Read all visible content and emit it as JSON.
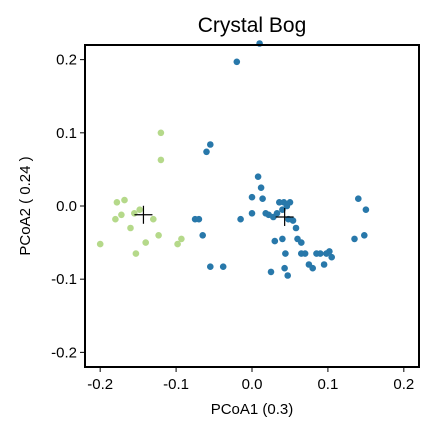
{
  "chart_data": {
    "type": "scatter",
    "title": "Crystal Bog",
    "xlabel": "PCoA1 (0.3)",
    "ylabel": "PCoA2 ( 0.24 )",
    "xlim": [
      -0.22,
      0.22
    ],
    "ylim": [
      -0.22,
      0.22
    ],
    "xticks": [
      -0.2,
      -0.1,
      0.0,
      0.1,
      0.2
    ],
    "yticks": [
      -0.2,
      -0.1,
      0.0,
      0.1,
      0.2
    ],
    "xtick_labels": [
      "-0.2",
      "-0.1",
      "0.0",
      "0.1",
      "0.2"
    ],
    "ytick_labels": [
      "-0.2",
      "-0.1",
      "0.0",
      "0.1",
      "0.2"
    ],
    "grid": false,
    "legend": "none",
    "series": [
      {
        "color": "#b5d98a",
        "points": [
          [
            -0.2,
            -0.052
          ],
          [
            -0.18,
            -0.018
          ],
          [
            -0.178,
            0.005
          ],
          [
            -0.172,
            -0.012
          ],
          [
            -0.168,
            0.008
          ],
          [
            -0.16,
            -0.03
          ],
          [
            -0.155,
            -0.01
          ],
          [
            -0.153,
            -0.065
          ],
          [
            -0.148,
            -0.005
          ],
          [
            -0.14,
            -0.05
          ],
          [
            -0.13,
            -0.018
          ],
          [
            -0.123,
            -0.04
          ],
          [
            -0.12,
            0.063
          ],
          [
            -0.12,
            0.1
          ],
          [
            -0.098,
            -0.052
          ],
          [
            -0.093,
            -0.045
          ]
        ],
        "centroid": [
          -0.143,
          -0.012
        ]
      },
      {
        "color": "#2878aa",
        "points": [
          [
            0.01,
            0.222
          ],
          [
            -0.02,
            0.197
          ],
          [
            -0.055,
            0.084
          ],
          [
            -0.06,
            0.074
          ],
          [
            -0.075,
            -0.018
          ],
          [
            -0.07,
            -0.018
          ],
          [
            -0.065,
            -0.04
          ],
          [
            -0.055,
            -0.083
          ],
          [
            -0.038,
            -0.083
          ],
          [
            -0.015,
            -0.018
          ],
          [
            0.0,
            0.012
          ],
          [
            0.0,
            -0.01
          ],
          [
            0.008,
            0.04
          ],
          [
            0.012,
            0.025
          ],
          [
            0.014,
            0.01
          ],
          [
            0.018,
            -0.01
          ],
          [
            0.022,
            -0.012
          ],
          [
            0.028,
            -0.015
          ],
          [
            0.025,
            -0.09
          ],
          [
            0.03,
            -0.048
          ],
          [
            0.033,
            -0.01
          ],
          [
            0.036,
            0.005
          ],
          [
            0.04,
            -0.005
          ],
          [
            0.042,
            0.005
          ],
          [
            0.046,
            0.0
          ],
          [
            0.048,
            -0.018
          ],
          [
            0.04,
            -0.045
          ],
          [
            0.044,
            -0.065
          ],
          [
            0.043,
            -0.085
          ],
          [
            0.047,
            -0.095
          ],
          [
            0.05,
            0.005
          ],
          [
            0.054,
            -0.02
          ],
          [
            0.058,
            -0.03
          ],
          [
            0.06,
            -0.045
          ],
          [
            0.065,
            -0.05
          ],
          [
            0.065,
            -0.065
          ],
          [
            0.07,
            -0.065
          ],
          [
            0.075,
            -0.08
          ],
          [
            0.08,
            -0.085
          ],
          [
            0.085,
            -0.065
          ],
          [
            0.09,
            -0.065
          ],
          [
            0.095,
            -0.08
          ],
          [
            0.098,
            -0.065
          ],
          [
            0.102,
            -0.062
          ],
          [
            0.105,
            -0.07
          ],
          [
            0.135,
            -0.045
          ],
          [
            0.14,
            0.01
          ],
          [
            0.148,
            -0.04
          ],
          [
            0.15,
            -0.005
          ]
        ],
        "centroid": [
          0.043,
          -0.015
        ]
      }
    ]
  }
}
